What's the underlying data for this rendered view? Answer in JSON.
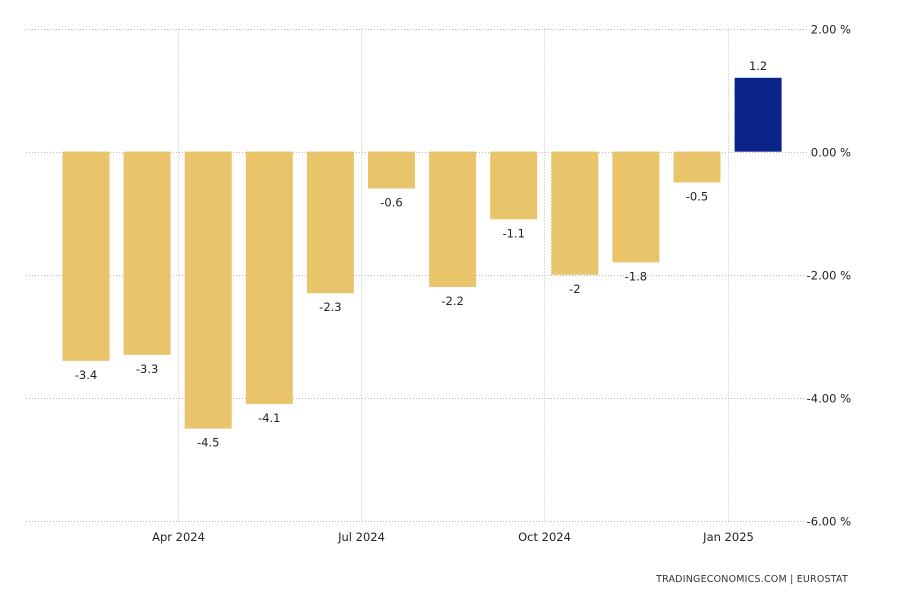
{
  "chart_data": {
    "type": "bar",
    "title": "",
    "xlabel": "",
    "ylabel": "",
    "categories": [
      "2024-02",
      "2024-03",
      "2024-04",
      "2024-05",
      "2024-06",
      "2024-07",
      "2024-08",
      "2024-09",
      "2024-10",
      "2024-11",
      "2024-12",
      "2025-01"
    ],
    "values": [
      -3.4,
      -3.3,
      -4.5,
      -4.1,
      -2.3,
      -0.6,
      -2.2,
      -1.1,
      -2,
      -1.8,
      -0.5,
      1.2
    ],
    "value_labels": [
      "-3.4",
      "-3.3",
      "-4.5",
      "-4.1",
      "-2.3",
      "-0.6",
      "-2.2",
      "-1.1",
      "-2",
      "-1.8",
      "-0.5",
      "1.2"
    ],
    "ylim": [
      -6,
      2
    ],
    "y_ticks": [
      2,
      0,
      -2,
      -4,
      -6
    ],
    "y_tick_labels": [
      "2.00 %",
      "0.00 %",
      "-2.00 %",
      "-4.00 %",
      "-6.00 %"
    ],
    "x_tick_labels": [
      {
        "label": "Apr 2024",
        "category": "2024-04"
      },
      {
        "label": "Jul 2024",
        "category": "2024-07"
      },
      {
        "label": "Oct 2024",
        "category": "2024-10"
      },
      {
        "label": "Jan 2025",
        "category": "2025-01"
      }
    ],
    "grid": true,
    "y_axis_side": "right",
    "colors": {
      "bar": "#e9c46a",
      "highlight_bar": "#0a2489"
    },
    "highlight_index": 11
  },
  "source": {
    "text": "TRADINGECONOMICS.COM  |  EUROSTAT"
  }
}
